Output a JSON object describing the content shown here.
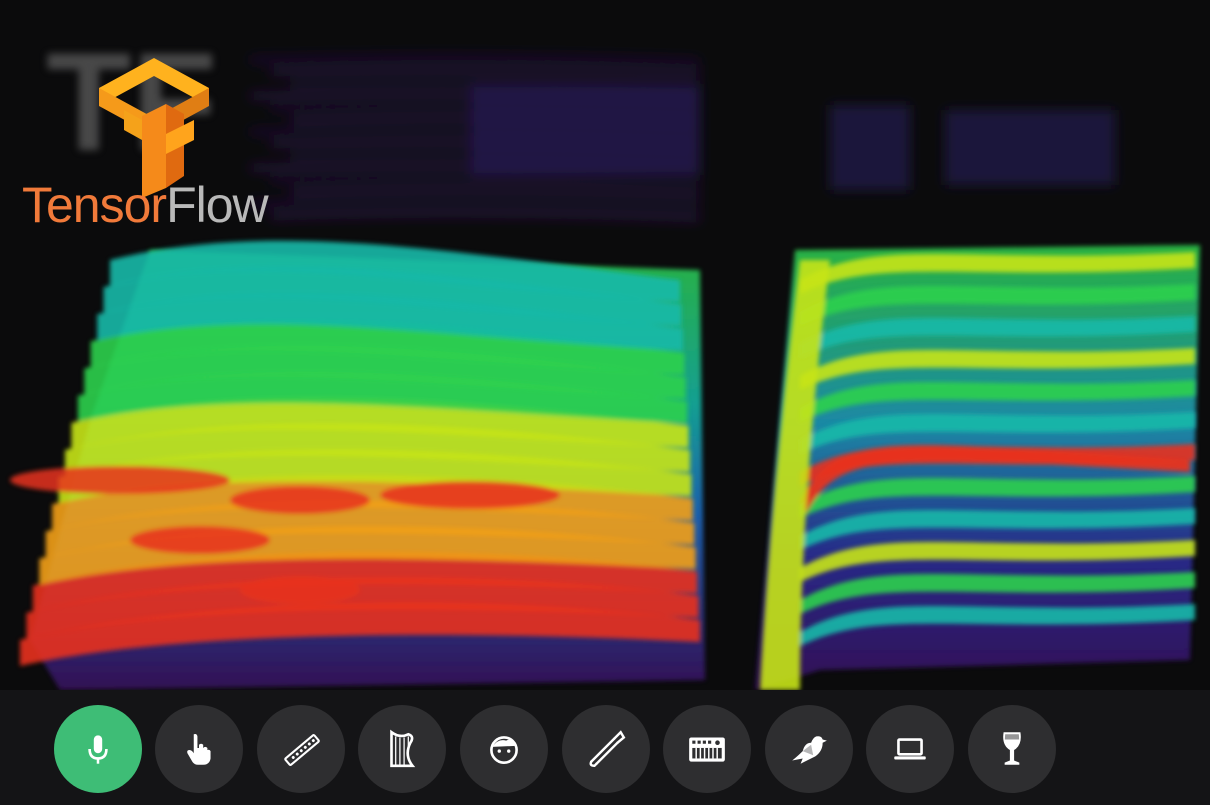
{
  "brand": {
    "word1": "Tensor",
    "word2": "Flow",
    "ghost_letters": "TF",
    "orange": "#f17a3a",
    "gray": "#b9b9b9"
  },
  "visualizer": {
    "palette": [
      "#2b0a4a",
      "#2f2a9e",
      "#1f7fc9",
      "#17b9a9",
      "#2fd04d",
      "#c7e41a",
      "#f2a014",
      "#e8321d"
    ]
  },
  "toolbar": {
    "active_color": "#3ebd76",
    "button_color": "#2e2e30",
    "buttons": [
      {
        "id": "microphone",
        "icon": "microphone-icon",
        "active": true
      },
      {
        "id": "touch",
        "icon": "hand-pointer-icon",
        "active": false
      },
      {
        "id": "flute",
        "icon": "flute-icon",
        "active": false
      },
      {
        "id": "harp",
        "icon": "harp-icon",
        "active": false
      },
      {
        "id": "voice",
        "icon": "face-icon",
        "active": false
      },
      {
        "id": "trombone",
        "icon": "trombone-icon",
        "active": false
      },
      {
        "id": "synth",
        "icon": "synthesizer-icon",
        "active": false
      },
      {
        "id": "bird",
        "icon": "bird-icon",
        "active": false
      },
      {
        "id": "computer",
        "icon": "laptop-icon",
        "active": false
      },
      {
        "id": "wine-glass",
        "icon": "wine-glass-icon",
        "active": false
      }
    ]
  }
}
